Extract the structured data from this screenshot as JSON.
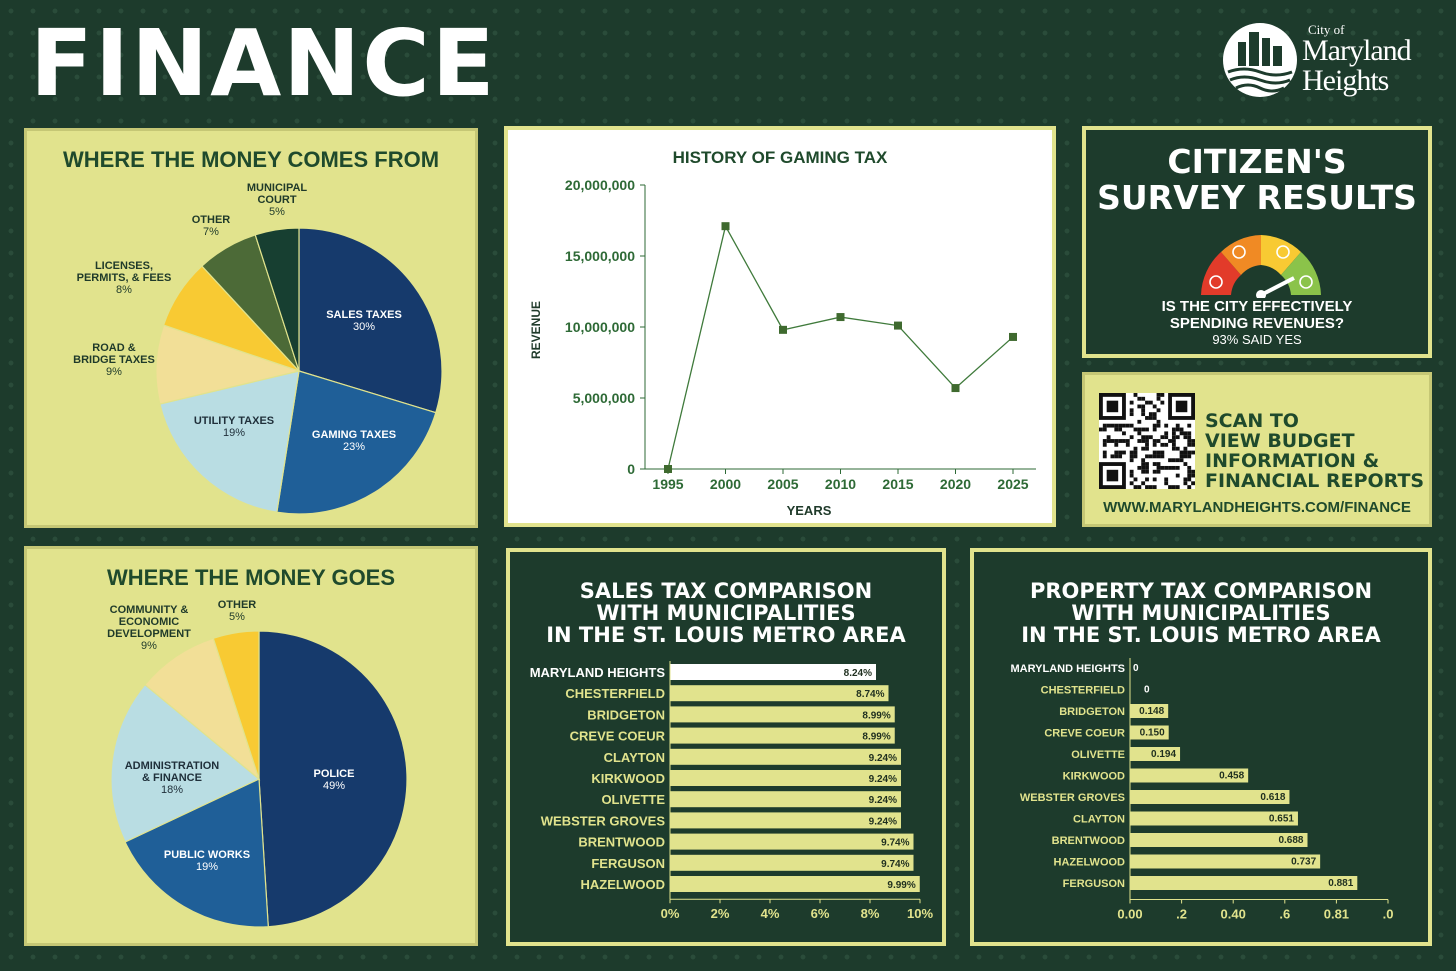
{
  "header": {
    "title": "FINANCE"
  },
  "logo": {
    "line1": "City of",
    "line2": "Maryland",
    "line3": "Heights"
  },
  "income": {
    "title": "WHERE THE MONEY COMES FROM",
    "chart_data": {
      "type": "pie",
      "slices": [
        {
          "name": "SALES TAXES",
          "pct": "30%",
          "value": 30,
          "color": "#163a6c"
        },
        {
          "name": "GAMING TAXES",
          "pct": "23%",
          "value": 23,
          "color": "#1f5f98"
        },
        {
          "name": "UTILITY TAXES",
          "pct": "19%",
          "value": 19,
          "color": "#b9dde3"
        },
        {
          "name": "ROAD & BRIDGE TAXES",
          "pct": "9%",
          "value": 9,
          "color": "#f2df97"
        },
        {
          "name": "LICENSES, PERMITS, & FEES",
          "pct": "8%",
          "value": 8,
          "color": "#f8ca33"
        },
        {
          "name": "OTHER",
          "pct": "7%",
          "value": 7,
          "color": "#4c6a37"
        },
        {
          "name": "MUNICIPAL COURT",
          "pct": "5%",
          "value": 5,
          "color": "#173f31"
        }
      ]
    }
  },
  "expenses": {
    "title": "WHERE THE MONEY GOES",
    "chart_data": {
      "type": "pie",
      "slices": [
        {
          "name": "POLICE",
          "pct": "49%",
          "value": 49,
          "color": "#163a6c"
        },
        {
          "name": "PUBLIC WORKS",
          "pct": "19%",
          "value": 19,
          "color": "#1f5f98"
        },
        {
          "name": "ADMINISTRATION & FINANCE",
          "pct": "18%",
          "value": 18,
          "color": "#b9dde3"
        },
        {
          "name": "COMMUNITY & ECONOMIC DEVELOPMENT",
          "pct": "9%",
          "value": 9,
          "color": "#f2df97"
        },
        {
          "name": "OTHER",
          "pct": "5%",
          "value": 5,
          "color": "#f8ca33"
        }
      ]
    }
  },
  "gaming": {
    "title": "HISTORY OF GAMING TAX",
    "chart_data": {
      "type": "line",
      "x": [
        1995,
        2000,
        2005,
        2010,
        2015,
        2020,
        2025
      ],
      "y": [
        0,
        17100000,
        9800000,
        10700000,
        10100000,
        5700000,
        9300000
      ],
      "xlabel": "YEARS",
      "ylabel": "REVENUE",
      "ylim": [
        0,
        20000000
      ],
      "yticks": [
        "0",
        "5,000,000",
        "10,000,000",
        "15,000,000",
        "20,000,000"
      ],
      "xticks": [
        "1995",
        "2000",
        "2005",
        "2010",
        "2015",
        "2020",
        "2025"
      ]
    }
  },
  "survey": {
    "title_line1": "CITIZEN'S",
    "title_line2": "SURVEY RESULTS",
    "question_line1": "IS THE CITY EFFECTIVELY",
    "question_line2": "SPENDING REVENUES?",
    "result": "93% SAID YES"
  },
  "qr": {
    "line1": "SCAN TO",
    "line2": "VIEW BUDGET",
    "line3": "INFORMATION &",
    "line4": "FINANCIAL REPORTS",
    "url": "WWW.MARYLANDHEIGHTS.COM/FINANCE"
  },
  "sales_tax": {
    "title_line1": "SALES TAX COMPARISON",
    "title_line2": "WITH MUNICIPALITIES",
    "title_line3": "IN THE ST. LOUIS METRO AREA",
    "chart_data": {
      "type": "bar",
      "orientation": "horizontal",
      "categories": [
        "MARYLAND HEIGHTS",
        "CHESTERFIELD",
        "BRIDGETON",
        "CREVE COEUR",
        "CLAYTON",
        "KIRKWOOD",
        "OLIVETTE",
        "WEBSTER GROVES",
        "BRENTWOOD",
        "FERGUSON",
        "HAZELWOOD"
      ],
      "values": [
        8.24,
        8.74,
        8.99,
        8.99,
        9.24,
        9.24,
        9.24,
        9.24,
        9.74,
        9.74,
        9.99
      ],
      "labels": [
        "8.24%",
        "8.74%",
        "8.99%",
        "8.99%",
        "9.24%",
        "9.24%",
        "9.24%",
        "9.24%",
        "9.74%",
        "9.74%",
        "9.99%"
      ],
      "xlim": [
        0,
        10
      ],
      "xticks": [
        "0%",
        "2%",
        "4%",
        "6%",
        "8%",
        "10%"
      ]
    }
  },
  "property_tax": {
    "title_line1": "PROPERTY TAX COMPARISON",
    "title_line2": "WITH MUNICIPALITIES",
    "title_line3": "IN THE ST. LOUIS METRO AREA",
    "chart_data": {
      "type": "bar",
      "orientation": "horizontal",
      "categories": [
        "MARYLAND HEIGHTS",
        "CHESTERFIELD",
        "BRIDGETON",
        "CREVE COEUR",
        "OLIVETTE",
        "KIRKWOOD",
        "WEBSTER GROVES",
        "CLAYTON",
        "BRENTWOOD",
        "HAZELWOOD",
        "FERGUSON"
      ],
      "values": [
        0,
        0,
        0.148,
        0.15,
        0.194,
        0.458,
        0.618,
        0.651,
        0.688,
        0.737,
        0.881
      ],
      "labels": [
        "0",
        "0",
        "0.148",
        "0.150",
        "0.194",
        "0.458",
        "0.618",
        "0.651",
        "0.688",
        "0.737",
        "0.881"
      ],
      "xlim": [
        0,
        1.0
      ],
      "xticks": [
        "0.00",
        ".2",
        "0.40",
        ".6",
        "0.81",
        ".0"
      ]
    }
  },
  "colors": {
    "background": "#1d3b2c",
    "panel_yellow": "#e1e38d",
    "text_green": "#1f4a2c",
    "highlight": "#ffffff"
  }
}
